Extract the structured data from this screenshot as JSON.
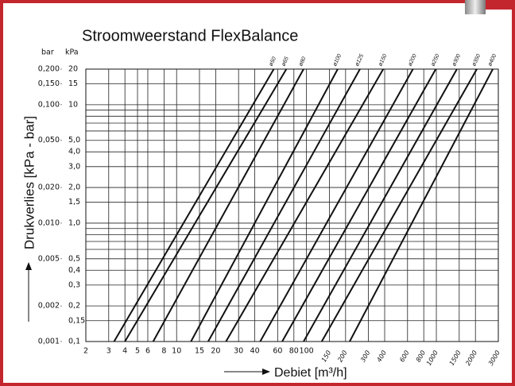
{
  "chart_data": {
    "type": "line",
    "title": "Stroomweerstand FlexBalance",
    "y2_unit": "bar",
    "y_unit": "kPa",
    "ylabel": "Drukverlies [kPa - bar]",
    "xlabel": "Debiet [m³/h]",
    "xscale": "log",
    "yscale": "log",
    "xlim": [
      2,
      3000
    ],
    "xticks": [
      2,
      3,
      4,
      5,
      6,
      8,
      10,
      15,
      20,
      30,
      40,
      60,
      80,
      100,
      150,
      200,
      300,
      400,
      600,
      800,
      1000,
      1500,
      2000,
      3000
    ],
    "ylim": [
      0.1,
      20
    ],
    "yticks": [
      {
        "value": 0.1,
        "label": "0,1"
      },
      {
        "value": 0.15,
        "label": "0,15"
      },
      {
        "value": 0.2,
        "label": "0,2"
      },
      {
        "value": 0.3,
        "label": "0,3"
      },
      {
        "value": 0.4,
        "label": "0,4"
      },
      {
        "value": 0.5,
        "label": "0,5"
      },
      {
        "value": 1,
        "label": "1,0"
      },
      {
        "value": 1.5,
        "label": "1,5"
      },
      {
        "value": 2,
        "label": "2,0"
      },
      {
        "value": 3,
        "label": "3,0"
      },
      {
        "value": 4,
        "label": "4,0"
      },
      {
        "value": 5,
        "label": "5,0"
      },
      10,
      15,
      20
    ],
    "yminor": [
      0.6,
      0.7,
      0.8,
      0.9,
      6,
      7,
      8,
      9
    ],
    "y2lim": [
      0.001,
      0.2
    ],
    "y2ticks": [
      {
        "value": 0.001,
        "label": "0,001"
      },
      {
        "value": 0.002,
        "label": "0,002"
      },
      {
        "value": 0.005,
        "label": "0,005"
      },
      {
        "value": 0.01,
        "label": "0,010"
      },
      {
        "value": 0.02,
        "label": "0,020"
      },
      {
        "value": 0.05,
        "label": "0,050"
      },
      {
        "value": 0.1,
        "label": "0,100"
      },
      {
        "value": 0.15,
        "label": "0,150"
      },
      {
        "value": 0.2,
        "label": "0,200"
      }
    ],
    "grid": true,
    "series": [
      {
        "name": "ø50",
        "color": "#111111",
        "x": [
          3.3,
          56
        ],
        "values": [
          0.1,
          20
        ]
      },
      {
        "name": "ø65",
        "color": "#111111",
        "x": [
          4,
          70
        ],
        "values": [
          0.1,
          20
        ]
      },
      {
        "name": "ø80",
        "color": "#111111",
        "x": [
          6.6,
          95
        ],
        "values": [
          0.1,
          20
        ]
      },
      {
        "name": "ø100",
        "color": "#111111",
        "x": [
          12.9,
          174
        ],
        "values": [
          0.1,
          20
        ]
      },
      {
        "name": "ø125",
        "color": "#111111",
        "x": [
          17.5,
          258
        ],
        "values": [
          0.1,
          20
        ]
      },
      {
        "name": "ø150",
        "color": "#111111",
        "x": [
          24,
          390
        ],
        "values": [
          0.1,
          20
        ]
      },
      {
        "name": "ø200",
        "color": "#111111",
        "x": [
          44,
          660
        ],
        "values": [
          0.1,
          20
        ]
      },
      {
        "name": "ø250",
        "color": "#111111",
        "x": [
          65,
          990
        ],
        "values": [
          0.1,
          20
        ]
      },
      {
        "name": "ø300",
        "color": "#111111",
        "x": [
          95,
          1440
        ],
        "values": [
          0.1,
          20
        ]
      },
      {
        "name": "ø350",
        "color": "#111111",
        "x": [
          131,
          2050
        ],
        "values": [
          0.1,
          20
        ]
      },
      {
        "name": "ø400",
        "color": "#111111",
        "x": [
          215,
          2720
        ],
        "values": [
          0.1,
          20
        ]
      }
    ]
  }
}
